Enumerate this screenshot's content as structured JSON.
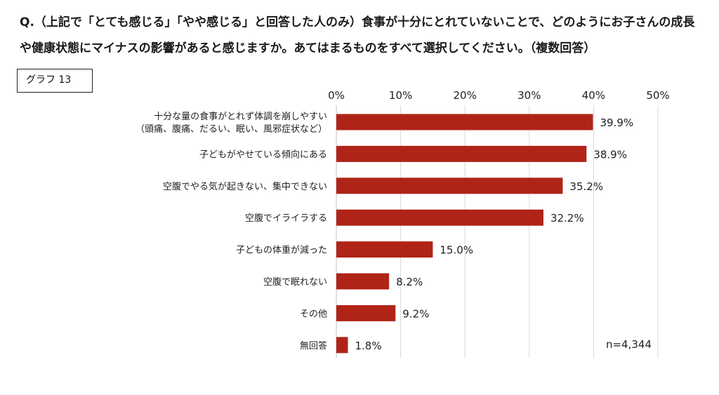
{
  "question": "Q.（上記で「とても感じる」「やや感じる」と回答した人のみ）食事が十分にとれていないことで、どのようにお子さんの成長や健康状態にマイナスの影響があると感じますか。あてはまるものをすべて選択してください。（複数回答）",
  "graph_label": "グラフ 13",
  "chart_data": {
    "type": "bar",
    "orientation": "horizontal",
    "categories": [
      [
        "十分な量の食事がとれず体調を崩しやすい",
        "（頭痛、腹痛、だるい、眠い、風邪症状など）"
      ],
      [
        "子どもがやせている傾向にある"
      ],
      [
        "空腹でやる気が起きない、集中できない"
      ],
      [
        "空腹でイライラする"
      ],
      [
        "子どもの体重が減った"
      ],
      [
        "空腹で眠れない"
      ],
      [
        "その他"
      ],
      [
        "無回答"
      ]
    ],
    "values": [
      39.9,
      38.9,
      35.2,
      32.2,
      15.0,
      8.2,
      9.2,
      1.8
    ],
    "data_labels": [
      "39.9%",
      "38.9%",
      "35.2%",
      "32.2%",
      "15.0%",
      "8.2%",
      "9.2%",
      "1.8%"
    ],
    "xlim": [
      0,
      50
    ],
    "xticks": [
      "0%",
      "10%",
      "20%",
      "30%",
      "40%",
      "50%"
    ],
    "gridlines": true,
    "bar_color": "#b02418",
    "annotation": "n=4,344"
  }
}
